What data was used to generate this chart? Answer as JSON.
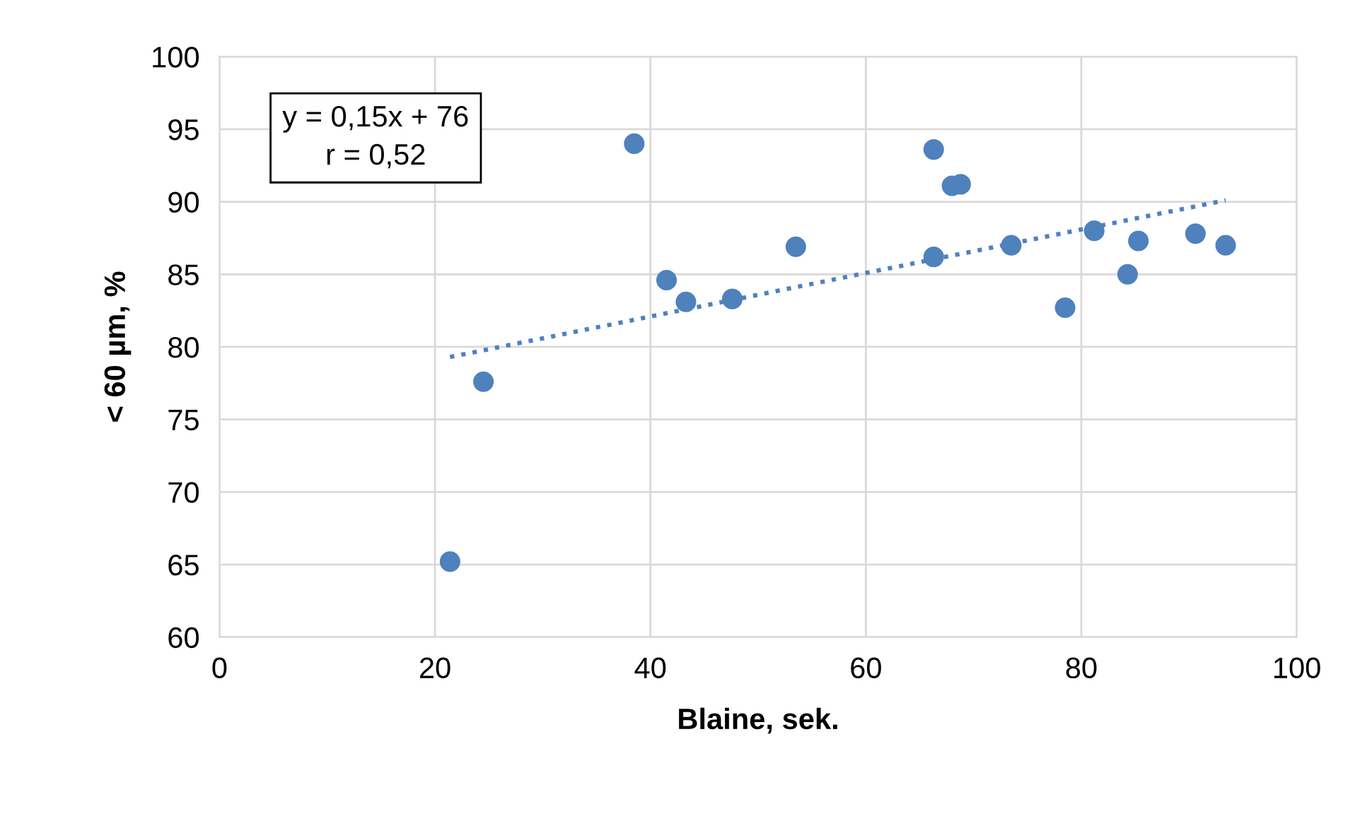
{
  "chart_data": {
    "type": "scatter",
    "xlabel": "Blaine, sek.",
    "ylabel": "< 60 µm, %",
    "annotations": [
      "y = 0,15x + 76\nr = 0,52"
    ],
    "series": [
      {
        "color": "#4f81bd",
        "marker": "circle",
        "x": [
          21.4,
          24.5,
          38.5,
          41.5,
          43.3,
          47.6,
          53.5,
          66.3,
          66.3,
          68.0,
          68.8,
          73.5,
          78.5,
          81.2,
          84.3,
          85.3,
          90.6,
          93.4
        ],
        "values": [
          65.2,
          77.6,
          94.0,
          84.6,
          83.1,
          83.3,
          86.9,
          93.6,
          86.2,
          91.1,
          91.2,
          87.0,
          82.7,
          88.0,
          85.0,
          87.3,
          87.8,
          87.0
        ]
      },
      {
        "type": "line",
        "color": "#4f81bd",
        "line_style": "dotted",
        "x": [
          21.4,
          93.4
        ],
        "values": [
          79.3,
          90.1
        ]
      }
    ],
    "xlim": [
      0,
      100
    ],
    "xticks": [
      0,
      20,
      40,
      60,
      80,
      100
    ],
    "ylim": [
      60,
      100
    ],
    "yticks": [
      60,
      65,
      70,
      75,
      80,
      85,
      90,
      95,
      100
    ],
    "grid": true,
    "legend": false
  }
}
